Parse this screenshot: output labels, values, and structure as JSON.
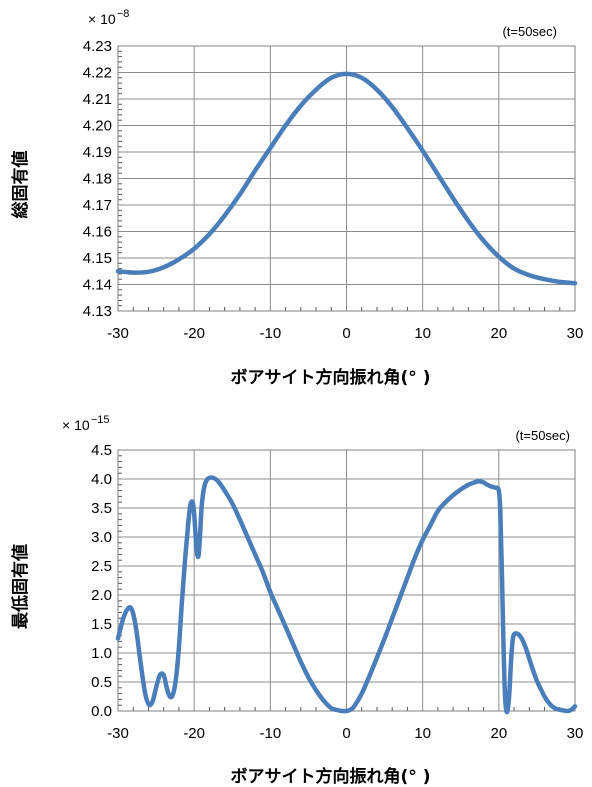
{
  "chart_data": [
    {
      "type": "line",
      "ylabel": "総固有値",
      "xlabel": "ボアサイト方向振れ角(° )",
      "annotation": "(t=50sec)",
      "y_multiplier_base": "× 10",
      "y_multiplier_exp": "−8",
      "xlim": [
        -30,
        30
      ],
      "ylim": [
        4.13,
        4.23
      ],
      "x_ticks": [
        "-30",
        "-20",
        "-10",
        "0",
        "10",
        "20",
        "30"
      ],
      "y_ticks": [
        "4.13",
        "4.14",
        "4.15",
        "4.16",
        "4.17",
        "4.18",
        "4.19",
        "4.20",
        "4.21",
        "4.22",
        "4.23"
      ],
      "grid": true,
      "color": "#4a7ebb",
      "series": [
        {
          "x": [
            -30,
            -28,
            -26,
            -24,
            -22,
            -20,
            -18,
            -16,
            -14,
            -12,
            -10,
            -8,
            -6,
            -4,
            -2,
            0,
            2,
            4,
            6,
            8,
            10,
            12,
            14,
            16,
            18,
            20,
            22,
            24,
            26,
            28,
            30
          ],
          "y": [
            4.145,
            4.1445,
            4.1448,
            4.1465,
            4.1495,
            4.1535,
            4.159,
            4.166,
            4.174,
            4.183,
            4.1915,
            4.2,
            4.2075,
            4.2135,
            4.218,
            4.2195,
            4.218,
            4.2135,
            4.207,
            4.199,
            4.1905,
            4.1815,
            4.1725,
            4.164,
            4.1565,
            4.1505,
            4.146,
            4.1435,
            4.142,
            4.141,
            4.1405
          ]
        }
      ]
    },
    {
      "type": "line",
      "ylabel": "最低固有値",
      "xlabel": "ボアサイト方向振れ角(° )",
      "annotation": "(t=50sec)",
      "y_multiplier_base": "× 10",
      "y_multiplier_exp": "−15",
      "xlim": [
        -30,
        30
      ],
      "ylim": [
        0,
        4.5
      ],
      "x_ticks": [
        "-30",
        "-20",
        "-10",
        "0",
        "10",
        "20",
        "30"
      ],
      "y_ticks": [
        "0.0",
        "0.5",
        "1.0",
        "1.5",
        "2.0",
        "2.5",
        "3.0",
        "3.5",
        "4.0",
        "4.5"
      ],
      "grid": true,
      "color": "#4a7ebb",
      "series": [
        {
          "x": [
            -30,
            -29.3,
            -28.6,
            -28.1,
            -27.6,
            -27.1,
            -26.5,
            -26,
            -25.5,
            -25,
            -24.5,
            -24,
            -23.6,
            -23.2,
            -22.8,
            -22.4,
            -22,
            -21.6,
            -21.2,
            -20.8,
            -20.5,
            -20.2,
            -20,
            -19.8,
            -19.6,
            -19.4,
            -19.2,
            -19,
            -18.7,
            -18.4,
            -18,
            -17.5,
            -17,
            -16.5,
            -16,
            -15,
            -14,
            -13,
            -12,
            -11,
            -10,
            -9,
            -8,
            -7,
            -6,
            -5,
            -4,
            -3,
            -2,
            -1,
            -0.5,
            0,
            0.5,
            1,
            2,
            3,
            4,
            5,
            6,
            7,
            8,
            9,
            10,
            11,
            12,
            13,
            14,
            15,
            16,
            17,
            17.5,
            18,
            18.5,
            19,
            19.5,
            20,
            20.2,
            20.4,
            20.6,
            20.8,
            21,
            21.2,
            21.4,
            21.6,
            21.8,
            22,
            22.5,
            23,
            23.5,
            24,
            24.5,
            25,
            25.5,
            26,
            26.5,
            27,
            27.5,
            28,
            28.5,
            29,
            29.5,
            30
          ],
          "y": [
            1.25,
            1.6,
            1.78,
            1.72,
            1.4,
            0.9,
            0.35,
            0.12,
            0.15,
            0.4,
            0.62,
            0.62,
            0.4,
            0.25,
            0.28,
            0.55,
            1.1,
            1.9,
            2.6,
            3.2,
            3.55,
            3.6,
            3.4,
            3.0,
            2.7,
            2.7,
            3.1,
            3.55,
            3.85,
            3.97,
            4.02,
            4.02,
            3.98,
            3.9,
            3.8,
            3.58,
            3.3,
            3.0,
            2.7,
            2.4,
            2.05,
            1.75,
            1.45,
            1.15,
            0.85,
            0.58,
            0.36,
            0.18,
            0.05,
            0.01,
            0.0,
            0.0,
            0.02,
            0.08,
            0.3,
            0.6,
            0.92,
            1.25,
            1.6,
            1.95,
            2.3,
            2.65,
            2.95,
            3.2,
            3.45,
            3.6,
            3.72,
            3.82,
            3.9,
            3.95,
            3.96,
            3.94,
            3.9,
            3.87,
            3.85,
            3.8,
            3.4,
            2.4,
            1.2,
            0.3,
            0.0,
            0.05,
            0.35,
            0.85,
            1.2,
            1.32,
            1.33,
            1.25,
            1.1,
            0.9,
            0.7,
            0.52,
            0.38,
            0.25,
            0.15,
            0.08,
            0.04,
            0.02,
            0.01,
            0.0,
            0.02,
            0.08
          ]
        }
      ]
    }
  ]
}
